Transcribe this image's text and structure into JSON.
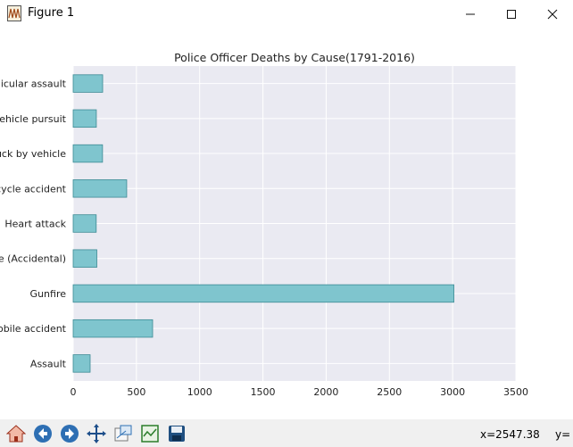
{
  "window": {
    "title": "Figure 1"
  },
  "toolbar": {
    "buttons": [
      {
        "name": "home-icon"
      },
      {
        "name": "back-arrow-icon"
      },
      {
        "name": "forward-arrow-icon"
      },
      {
        "name": "pan-move-icon"
      },
      {
        "name": "zoom-rect-icon"
      },
      {
        "name": "subplots-config-icon"
      },
      {
        "name": "save-disk-icon"
      }
    ],
    "status": {
      "x_readout": "x=2547.38",
      "y_readout": "y="
    }
  },
  "colors": {
    "bar_fill": "#7fc5ce",
    "bar_edge": "#3c8a94",
    "plot_bg": "#eaeaf2",
    "grid": "#ffffff"
  },
  "chart_data": {
    "type": "bar",
    "orientation": "horizontal",
    "title": "Police Officer Deaths by Cause(1791-2016)",
    "xlabel": "",
    "ylabel": "",
    "categories": [
      "Vehicular assault",
      "Vehicle pursuit",
      "Struck by vehicle",
      "Motorcycle accident",
      "Heart attack",
      "Gunfire (Accidental)",
      "Gunfire",
      "Automobile accident",
      "Assault"
    ],
    "values": [
      233,
      183,
      232,
      423,
      182,
      187,
      3010,
      628,
      134
    ],
    "xlim": [
      0,
      3500
    ],
    "xticks": [
      0,
      500,
      1000,
      1500,
      2000,
      2500,
      3000,
      3500
    ],
    "grid": true,
    "legend": "none"
  }
}
